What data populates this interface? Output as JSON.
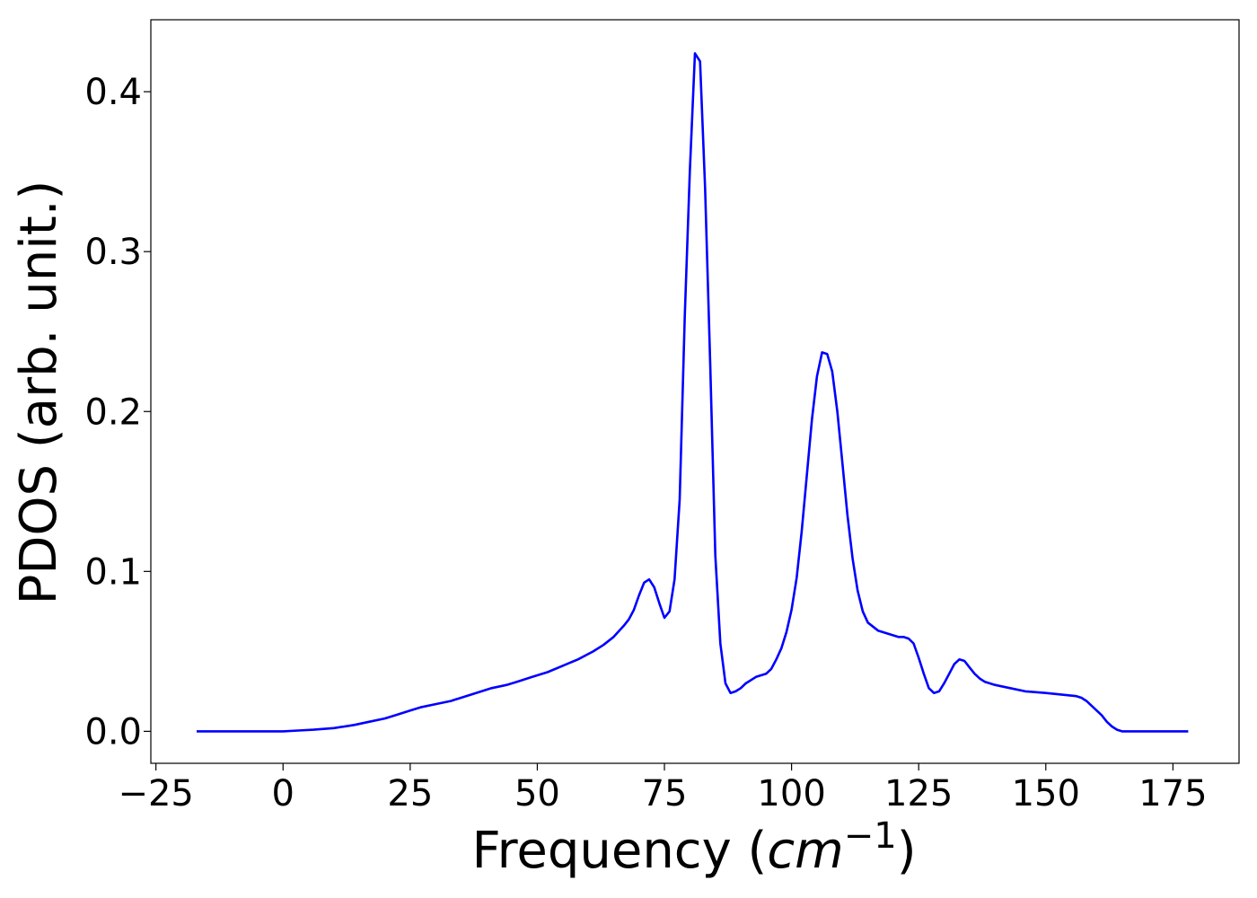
{
  "chart_data": {
    "type": "line",
    "xlabel": "Frequency (cm⁻¹)",
    "xlabel_parts": {
      "prefix": "Frequency (",
      "math": "cm",
      "sup": "−1",
      "suffix": ")"
    },
    "ylabel": "PDOS (arb. unit.)",
    "xlim": [
      -26,
      188
    ],
    "ylim": [
      -0.02,
      0.445
    ],
    "xticks": [
      -25,
      0,
      25,
      50,
      75,
      100,
      125,
      150,
      175
    ],
    "xtick_labels": [
      "−25",
      "0",
      "25",
      "50",
      "75",
      "100",
      "125",
      "150",
      "175"
    ],
    "yticks": [
      0.0,
      0.1,
      0.2,
      0.3,
      0.4
    ],
    "ytick_labels": [
      "0.0",
      "0.1",
      "0.2",
      "0.3",
      "0.4"
    ],
    "grid": false,
    "series": [
      {
        "color": "#0000ff",
        "x": [
          -17,
          -10,
          -5,
          0,
          3,
          6,
          10,
          14,
          17,
          20,
          22,
          25,
          27,
          30,
          33,
          36,
          39,
          41,
          44,
          46,
          49,
          52,
          55,
          58,
          61,
          63,
          65,
          67,
          68,
          69,
          70,
          71,
          72,
          73,
          74,
          75,
          76,
          77,
          78,
          79,
          80,
          81,
          82,
          83,
          84,
          85,
          86,
          87,
          88,
          89,
          90,
          91,
          93,
          95,
          96,
          97,
          98,
          99,
          100,
          101,
          102,
          103,
          104,
          105,
          106,
          107,
          108,
          109,
          110,
          111,
          112,
          113,
          114,
          115,
          117,
          119,
          121,
          122,
          123,
          124,
          125,
          126,
          127,
          128,
          129,
          130,
          131,
          132,
          133,
          134,
          135,
          136,
          137,
          138,
          140,
          143,
          146,
          150,
          153,
          156,
          157,
          158,
          159,
          160,
          161,
          162,
          163,
          164,
          165,
          170,
          175,
          178
        ],
        "y": [
          0.0,
          0.0,
          0.0,
          0.0,
          0.0005,
          0.001,
          0.002,
          0.004,
          0.006,
          0.008,
          0.01,
          0.013,
          0.015,
          0.017,
          0.019,
          0.022,
          0.025,
          0.027,
          0.029,
          0.031,
          0.034,
          0.037,
          0.041,
          0.045,
          0.05,
          0.054,
          0.059,
          0.066,
          0.07,
          0.076,
          0.085,
          0.093,
          0.095,
          0.09,
          0.08,
          0.071,
          0.075,
          0.095,
          0.145,
          0.26,
          0.35,
          0.424,
          0.419,
          0.34,
          0.23,
          0.11,
          0.055,
          0.03,
          0.024,
          0.025,
          0.027,
          0.03,
          0.034,
          0.036,
          0.039,
          0.045,
          0.052,
          0.062,
          0.076,
          0.096,
          0.125,
          0.16,
          0.195,
          0.222,
          0.237,
          0.236,
          0.225,
          0.2,
          0.168,
          0.135,
          0.108,
          0.088,
          0.075,
          0.068,
          0.063,
          0.061,
          0.059,
          0.059,
          0.058,
          0.055,
          0.046,
          0.036,
          0.027,
          0.024,
          0.025,
          0.03,
          0.036,
          0.042,
          0.045,
          0.044,
          0.04,
          0.036,
          0.033,
          0.031,
          0.029,
          0.027,
          0.025,
          0.024,
          0.023,
          0.022,
          0.021,
          0.019,
          0.016,
          0.013,
          0.01,
          0.006,
          0.003,
          0.001,
          0.0,
          0.0,
          0.0,
          0.0
        ]
      }
    ]
  }
}
